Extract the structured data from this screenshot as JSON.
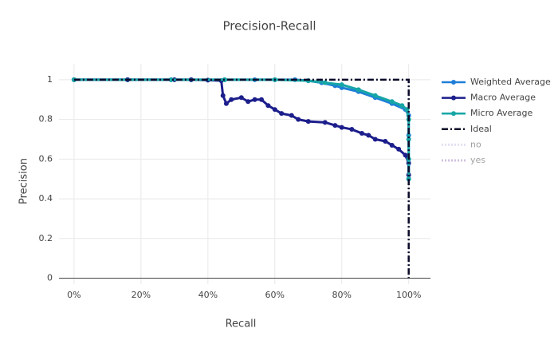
{
  "chart_data": {
    "type": "line",
    "title": "Precision-Recall",
    "x_label": "Recall",
    "y_label": "Precision",
    "xlim": [
      -0.045,
      1.065
    ],
    "ylim": [
      -0.03,
      1.08
    ],
    "xticks": [
      {
        "value": 0,
        "label": "0%"
      },
      {
        "value": 0.2,
        "label": "20%"
      },
      {
        "value": 0.4,
        "label": "40%"
      },
      {
        "value": 0.6,
        "label": "60%"
      },
      {
        "value": 0.8,
        "label": "80%"
      },
      {
        "value": 1,
        "label": "100%"
      }
    ],
    "yticks": [
      0,
      0.2,
      0.4,
      0.6,
      0.8,
      1
    ],
    "grid": true,
    "legend": "right",
    "series": [
      {
        "name": "Weighted Average",
        "color": "#1f7fd8",
        "dash": "solid",
        "markers": true,
        "x": [
          0,
          0.16,
          0.29,
          0.35,
          0.45,
          0.54,
          0.6,
          0.66,
          0.7,
          0.74,
          0.78,
          0.8,
          0.85,
          0.9,
          0.95,
          0.99,
          1,
          1,
          1,
          1
        ],
        "values": [
          1,
          1,
          1,
          1,
          1,
          1,
          1,
          1,
          0.995,
          0.985,
          0.97,
          0.96,
          0.94,
          0.91,
          0.88,
          0.85,
          0.82,
          0.72,
          0.6,
          0.5
        ]
      },
      {
        "name": "Macro Average",
        "color": "#1c1e8c",
        "dash": "solid",
        "markers": true,
        "x": [
          0,
          0.16,
          0.3,
          0.35,
          0.4,
          0.44,
          0.445,
          0.455,
          0.47,
          0.5,
          0.52,
          0.54,
          0.56,
          0.58,
          0.6,
          0.62,
          0.65,
          0.67,
          0.7,
          0.75,
          0.78,
          0.8,
          0.83,
          0.86,
          0.88,
          0.9,
          0.93,
          0.95,
          0.97,
          0.99,
          1,
          1
        ],
        "values": [
          1,
          1,
          1,
          1,
          0.998,
          0.995,
          0.92,
          0.88,
          0.9,
          0.91,
          0.89,
          0.9,
          0.9,
          0.87,
          0.85,
          0.83,
          0.82,
          0.8,
          0.79,
          0.785,
          0.77,
          0.76,
          0.75,
          0.73,
          0.72,
          0.7,
          0.69,
          0.67,
          0.65,
          0.62,
          0.58,
          0.52
        ]
      },
      {
        "name": "Micro Average",
        "color": "#17a6a6",
        "dash": "solid",
        "markers": true,
        "x": [
          0,
          0.29,
          0.45,
          0.6,
          0.7,
          0.75,
          0.8,
          0.85,
          0.9,
          0.95,
          0.98,
          0.995,
          1,
          1,
          1,
          1
        ],
        "values": [
          1,
          1,
          1,
          1,
          0.995,
          0.985,
          0.975,
          0.95,
          0.92,
          0.89,
          0.87,
          0.85,
          0.8,
          0.7,
          0.6,
          0.5
        ]
      },
      {
        "name": "Ideal",
        "color": "#0a0a2a",
        "dash": "8 3 2 3",
        "markers": false,
        "x": [
          0,
          1,
          1
        ],
        "values": [
          1,
          1,
          0
        ]
      },
      {
        "name": "no",
        "color": "#c9c3e6",
        "dash": "2 2",
        "visible": false
      },
      {
        "name": "yes",
        "color": "#a487c4",
        "dash": "2 2",
        "visible": false
      }
    ]
  }
}
